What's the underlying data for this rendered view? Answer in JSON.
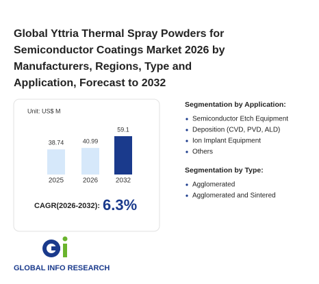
{
  "header": {
    "title": "Global Yttria Thermal Spray Powders for Semiconductor Coatings Market 2026 by Manufacturers, Regions, Type and Application, Forecast to 2032"
  },
  "chart": {
    "type": "bar",
    "unit": "Unit: US$ M",
    "categories": [
      "2025",
      "2026",
      "2032"
    ],
    "values": [
      38.74,
      40.99,
      59.1
    ],
    "colors": [
      "#d6e8fa",
      "#d6e8fa",
      "#1a3a8c"
    ],
    "cagr_label": "CAGR(2026-2032):",
    "cagr_value": "6.3%"
  },
  "segments": [
    {
      "title": "Segmentation by Application:",
      "items": [
        "Semiconductor Etch Equipment",
        "Deposition (CVD, PVD, ALD)",
        "Ion Implant Equipment",
        "Others"
      ]
    },
    {
      "title": "Segmentation by Type:",
      "items": [
        "Agglomerated",
        "Agglomerated and Sintered"
      ]
    }
  ],
  "logo": {
    "text": "GLOBAL INFO RESEARCH"
  }
}
